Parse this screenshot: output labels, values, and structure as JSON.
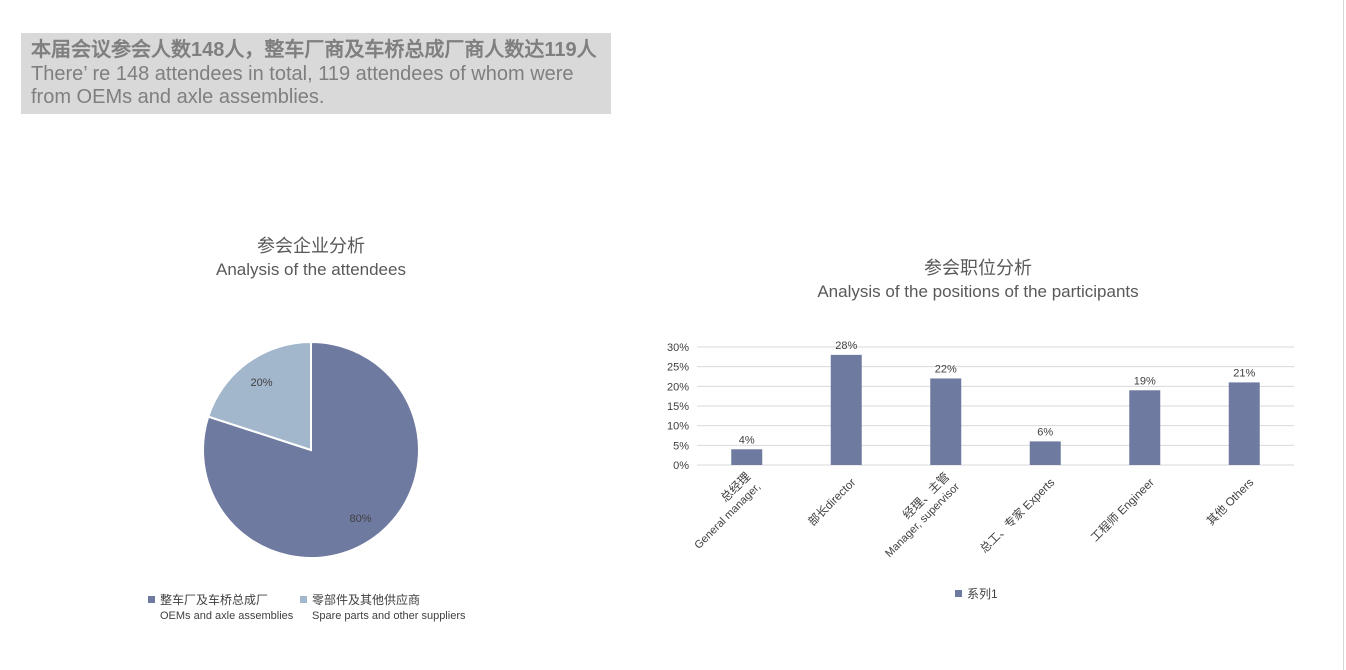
{
  "header": {
    "line_cn": "本届会议参会人数148人，整车厂商及车桥总成厂商人数达119人",
    "line_en": "There’ re 148 attendees in total, 119 attendees of whom were from OEMs and axle assemblies."
  },
  "colors": {
    "series_dark": "#6f7aa0",
    "series_light": "#a2b6cc",
    "grid": "#d9d9d9",
    "text": "#404040"
  },
  "chart_data": [
    {
      "type": "pie",
      "title": "参会企业分析",
      "subtitle": "Analysis of the attendees",
      "slices": [
        {
          "label_cn": "整车厂及车桥总成厂",
          "label_en": "OEMs and axle assemblies",
          "value": 80,
          "value_label": "80%",
          "color": "#6f7aa0"
        },
        {
          "label_cn": "零部件及其他供应商",
          "label_en": "Spare parts and other suppliers",
          "value": 20,
          "value_label": "20%",
          "color": "#a2b6cc"
        }
      ],
      "legend_position": "bottom"
    },
    {
      "type": "bar",
      "title": "参会职位分析",
      "subtitle": "Analysis of the positions of the participants",
      "categories": [
        {
          "cn": "总经理",
          "en": "General manager,"
        },
        {
          "cn": "部长director",
          "en": ""
        },
        {
          "cn": "经理、主管",
          "en": "Manager, supervisor"
        },
        {
          "cn": "总工、专家 Experts",
          "en": ""
        },
        {
          "cn": "工程师 Engineer",
          "en": ""
        },
        {
          "cn": "其他 Others",
          "en": ""
        }
      ],
      "series": [
        {
          "name": "系列1",
          "values": [
            4,
            28,
            22,
            6,
            19,
            21
          ],
          "value_labels": [
            "4%",
            "28%",
            "22%",
            "6%",
            "19%",
            "21%"
          ]
        }
      ],
      "y_ticks": [
        "0%",
        "5%",
        "10%",
        "15%",
        "20%",
        "25%",
        "30%"
      ],
      "ylim": [
        0,
        30
      ],
      "grid": true,
      "legend_position": "bottom"
    }
  ]
}
